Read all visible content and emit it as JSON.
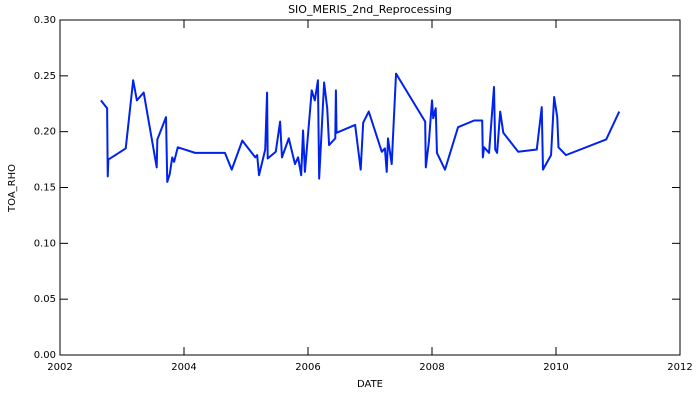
{
  "chart_data": {
    "type": "line",
    "title": "SIO_MERIS_2nd_Reprocessing",
    "x_label": "DATE",
    "y_label": "TOA_RHO",
    "xlim": [
      2002,
      2012
    ],
    "xticks": [
      2002,
      2004,
      2006,
      2008,
      2010,
      2012
    ],
    "ylim": [
      0,
      0.3
    ],
    "yticks": [
      {
        "value": 0,
        "label": "0.00"
      },
      {
        "value": 0.05,
        "label": "0.05"
      },
      {
        "value": 0.1,
        "label": "0.10"
      },
      {
        "value": 0.15,
        "label": "0.15"
      },
      {
        "value": 0.2,
        "label": "0.20"
      },
      {
        "value": 0.25,
        "label": "0.25"
      },
      {
        "value": 0.3,
        "label": "0.30"
      }
    ],
    "color": "#0022ee",
    "x": [
      2002.66,
      2002.76,
      2002.77,
      2002.78,
      2003.06,
      2003.18,
      2003.24,
      2003.35,
      2003.56,
      2003.57,
      2003.71,
      2003.73,
      2003.77,
      2003.81,
      2003.84,
      2003.9,
      2004.18,
      2004.66,
      2004.77,
      2004.94,
      2005.15,
      2005.18,
      2005.21,
      2005.31,
      2005.34,
      2005.35,
      2005.48,
      2005.55,
      2005.58,
      2005.69,
      2005.79,
      2005.84,
      2005.89,
      2005.92,
      2005.95,
      2006.06,
      2006.11,
      2006.16,
      2006.18,
      2006.26,
      2006.31,
      2006.34,
      2006.44,
      2006.45,
      2006.46,
      2006.76,
      2006.85,
      2006.89,
      2006.98,
      2007.19,
      2007.24,
      2007.27,
      2007.29,
      2007.35,
      2007.42,
      2007.89,
      2007.9,
      2007.95,
      2008.0,
      2008.02,
      2008.06,
      2008.08,
      2008.21,
      2008.42,
      2008.68,
      2008.81,
      2008.82,
      2008.84,
      2008.92,
      2009.0,
      2009.02,
      2009.05,
      2009.1,
      2009.15,
      2009.39,
      2009.69,
      2009.77,
      2009.79,
      2009.92,
      2009.97,
      2010.02,
      2010.04,
      2010.16,
      2010.81,
      2011.02
    ],
    "values": [
      0.228,
      0.221,
      0.16,
      0.175,
      0.185,
      0.246,
      0.228,
      0.235,
      0.168,
      0.193,
      0.213,
      0.155,
      0.162,
      0.177,
      0.173,
      0.186,
      0.181,
      0.181,
      0.166,
      0.192,
      0.177,
      0.179,
      0.161,
      0.184,
      0.235,
      0.176,
      0.182,
      0.209,
      0.177,
      0.194,
      0.171,
      0.177,
      0.161,
      0.201,
      0.164,
      0.237,
      0.228,
      0.246,
      0.158,
      0.244,
      0.221,
      0.188,
      0.194,
      0.237,
      0.199,
      0.206,
      0.166,
      0.208,
      0.218,
      0.182,
      0.185,
      0.164,
      0.194,
      0.171,
      0.252,
      0.209,
      0.168,
      0.191,
      0.228,
      0.212,
      0.221,
      0.181,
      0.166,
      0.204,
      0.21,
      0.21,
      0.177,
      0.186,
      0.181,
      0.24,
      0.184,
      0.181,
      0.218,
      0.199,
      0.182,
      0.184,
      0.222,
      0.166,
      0.179,
      0.231,
      0.213,
      0.186,
      0.179,
      0.193,
      0.218
    ]
  }
}
